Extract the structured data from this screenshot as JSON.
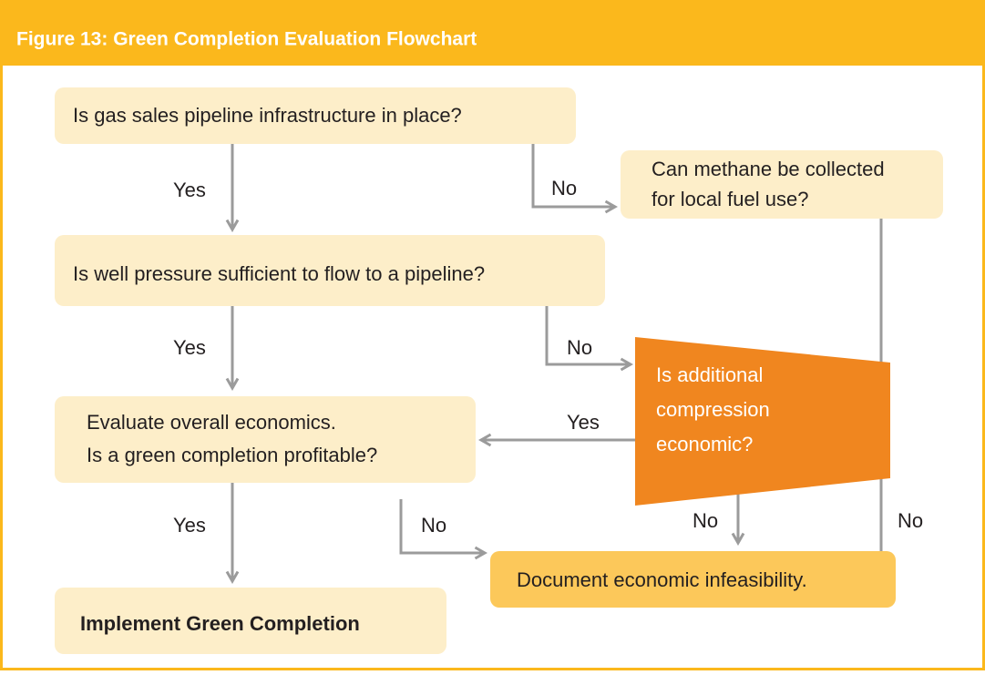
{
  "header": {
    "title": "Figure 13: Green Completion Evaluation Flowchart"
  },
  "nodes": [
    {
      "lines": [
        "Is gas sales pipeline infrastructure in place?"
      ]
    },
    {
      "lines": [
        "Can methane be collected",
        "for local fuel use?"
      ]
    },
    {
      "lines": [
        "Is well pressure sufficient to flow to a pipeline?"
      ]
    },
    {
      "lines": [
        "Is additional",
        "compression",
        "economic?"
      ]
    },
    {
      "lines": [
        "Evaluate overall economics.",
        "Is a green completion profitable?"
      ]
    },
    {
      "lines": [
        "Document economic infeasibility."
      ]
    },
    {
      "lines": [
        "Implement Green Completion"
      ]
    }
  ],
  "edges": [
    {
      "label": "Yes"
    },
    {
      "label": "No"
    },
    {
      "label": "Yes"
    },
    {
      "label": "No"
    },
    {
      "label": "Yes"
    },
    {
      "label": "No"
    },
    {
      "label": "No"
    },
    {
      "label": "Yes"
    },
    {
      "label": "No"
    }
  ]
}
